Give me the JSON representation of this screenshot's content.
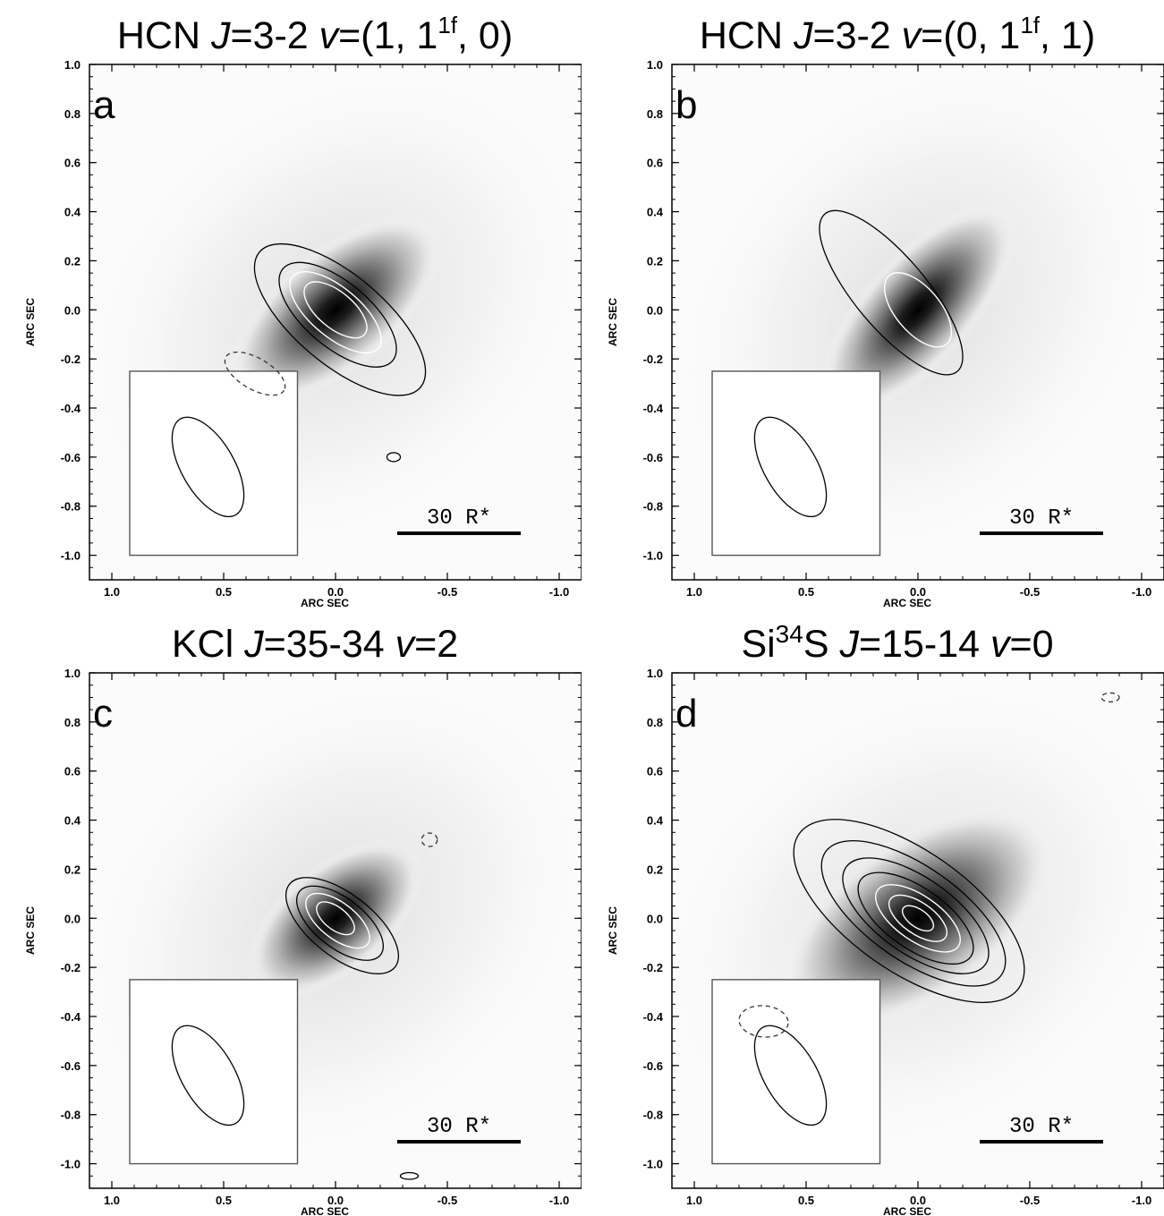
{
  "axes": {
    "xlabel": "ARC SEC",
    "ylabel": "ARC SEC",
    "x_ticks": [
      "1.0",
      "0.5",
      "0.0",
      "-0.5",
      "-1.0"
    ],
    "y_ticks": [
      "1.0",
      "0.8",
      "0.6",
      "0.4",
      "0.2",
      "0.0",
      "-0.2",
      "-0.4",
      "-0.6",
      "-0.8",
      "-1.0"
    ]
  },
  "scale_bar_label": "30 R*",
  "chart_data": [
    {
      "type": "heatmap",
      "panel_label": "a",
      "title": {
        "pre": "HCN ",
        "J": "J",
        "t1": "=3-2 ",
        "v": "v",
        "t2": "=(1, 1",
        "sup": "1f",
        "t3": ", 0)"
      },
      "xlabel": "ARC SEC",
      "ylabel": "ARC SEC",
      "xlim": [
        1.1,
        -1.1
      ],
      "ylim": [
        -1.1,
        1.0
      ],
      "emission_peak": [
        0.0,
        0.0
      ],
      "beam": {
        "center": [
          0.57,
          -0.64
        ],
        "major": 0.45,
        "minor": 0.19,
        "pa_deg": 35
      },
      "contours": [
        {
          "level": 1,
          "style": "black",
          "center": [
            -0.02,
            -0.04
          ],
          "major": 0.47,
          "minor": 0.2,
          "pa_deg": 40
        },
        {
          "level": 2,
          "style": "black",
          "center": [
            -0.01,
            -0.02
          ],
          "major": 0.32,
          "minor": 0.145,
          "pa_deg": 40
        },
        {
          "level": 3,
          "style": "white",
          "center": [
            0.0,
            -0.01
          ],
          "major": 0.25,
          "minor": 0.11,
          "pa_deg": 40
        },
        {
          "level": 4,
          "style": "white",
          "center": [
            0.0,
            0.0
          ],
          "major": 0.17,
          "minor": 0.08,
          "pa_deg": 40
        },
        {
          "level": -1,
          "style": "dashed",
          "center": [
            0.36,
            -0.26
          ],
          "major": 0.15,
          "minor": 0.07,
          "pa_deg": 30
        },
        {
          "level": 1,
          "style": "black",
          "center": [
            -0.26,
            -0.6
          ],
          "major": 0.03,
          "minor": 0.02,
          "pa_deg": 0
        }
      ]
    },
    {
      "type": "heatmap",
      "panel_label": "b",
      "title": {
        "pre": "HCN ",
        "J": "J",
        "t1": "=3-2 ",
        "v": "v",
        "t2": "=(0, 1",
        "sup": "1f",
        "t3": ", 1)"
      },
      "xlabel": "ARC SEC",
      "ylabel": "ARC SEC",
      "xlim": [
        1.1,
        -1.1
      ],
      "ylim": [
        -1.1,
        1.0
      ],
      "emission_peak": [
        0.0,
        0.0
      ],
      "beam": {
        "center": [
          0.57,
          -0.64
        ],
        "major": 0.45,
        "minor": 0.19,
        "pa_deg": 35
      },
      "contours": [
        {
          "level": 1,
          "style": "black",
          "center": [
            0.12,
            0.07
          ],
          "major": 0.46,
          "minor": 0.16,
          "pa_deg": 50
        },
        {
          "level": 2,
          "style": "white",
          "center": [
            0.0,
            0.0
          ],
          "major": 0.2,
          "minor": 0.1,
          "pa_deg": 50
        }
      ]
    },
    {
      "type": "heatmap",
      "panel_label": "c",
      "title": {
        "pre": "KCl ",
        "J": "J",
        "t1": "=35-34 ",
        "v": "v",
        "t2": "=2",
        "sup": "",
        "t3": ""
      },
      "xlabel": "ARC SEC",
      "ylabel": "ARC SEC",
      "xlim": [
        1.1,
        -1.1
      ],
      "ylim": [
        -1.1,
        1.0
      ],
      "emission_peak": [
        0.0,
        0.0
      ],
      "beam": {
        "center": [
          0.57,
          -0.64
        ],
        "major": 0.45,
        "minor": 0.19,
        "pa_deg": 35
      },
      "contours": [
        {
          "level": 1,
          "style": "black",
          "center": [
            -0.03,
            -0.03
          ],
          "major": 0.3,
          "minor": 0.14,
          "pa_deg": 38
        },
        {
          "level": 2,
          "style": "black",
          "center": [
            -0.02,
            -0.02
          ],
          "major": 0.23,
          "minor": 0.11,
          "pa_deg": 38
        },
        {
          "level": 3,
          "style": "white",
          "center": [
            -0.01,
            -0.01
          ],
          "major": 0.17,
          "minor": 0.08,
          "pa_deg": 38
        },
        {
          "level": 4,
          "style": "white",
          "center": [
            0.0,
            0.0
          ],
          "major": 0.1,
          "minor": 0.05,
          "pa_deg": 38
        },
        {
          "level": -1,
          "style": "dashed",
          "center": [
            -0.42,
            0.32
          ],
          "major": 0.035,
          "minor": 0.03,
          "pa_deg": 0
        },
        {
          "level": 1,
          "style": "black",
          "center": [
            -0.33,
            -1.05
          ],
          "major": 0.04,
          "minor": 0.015,
          "pa_deg": 0
        }
      ]
    },
    {
      "type": "heatmap",
      "panel_label": "d",
      "title": {
        "pre": "Si",
        "sup0": "34",
        "pre2": "S ",
        "J": "J",
        "t1": "=15-14 ",
        "v": "v",
        "t2": "=0",
        "sup": "",
        "t3": ""
      },
      "xlabel": "ARC SEC",
      "ylabel": "ARC SEC",
      "xlim": [
        1.1,
        -1.1
      ],
      "ylim": [
        -1.1,
        1.0
      ],
      "emission_peak": [
        0.0,
        0.0
      ],
      "beam": {
        "center": [
          0.57,
          -0.64
        ],
        "major": 0.45,
        "minor": 0.19,
        "pa_deg": 35
      },
      "contours": [
        {
          "level": 1,
          "style": "black",
          "center": [
            0.04,
            0.03
          ],
          "major": 0.6,
          "minor": 0.27,
          "pa_deg": 35
        },
        {
          "level": 2,
          "style": "black",
          "center": [
            0.02,
            0.02
          ],
          "major": 0.48,
          "minor": 0.21,
          "pa_deg": 35
        },
        {
          "level": 3,
          "style": "black",
          "center": [
            0.01,
            0.01
          ],
          "major": 0.38,
          "minor": 0.17,
          "pa_deg": 35
        },
        {
          "level": 4,
          "style": "black",
          "center": [
            0.01,
            0.0
          ],
          "major": 0.3,
          "minor": 0.135,
          "pa_deg": 35
        },
        {
          "level": 5,
          "style": "white",
          "center": [
            0.0,
            0.0
          ],
          "major": 0.22,
          "minor": 0.1,
          "pa_deg": 35
        },
        {
          "level": 6,
          "style": "white",
          "center": [
            0.0,
            0.0
          ],
          "major": 0.15,
          "minor": 0.07,
          "pa_deg": 35
        },
        {
          "level": 7,
          "style": "white",
          "center": [
            0.0,
            0.0
          ],
          "major": 0.08,
          "minor": 0.04,
          "pa_deg": 35
        },
        {
          "level": -1,
          "style": "dashed",
          "center": [
            0.69,
            -0.42
          ],
          "major": 0.11,
          "minor": 0.07,
          "pa_deg": 5
        },
        {
          "level": -1,
          "style": "dashed",
          "center": [
            -0.86,
            0.9
          ],
          "major": 0.04,
          "minor": 0.02,
          "pa_deg": 0
        }
      ]
    }
  ]
}
